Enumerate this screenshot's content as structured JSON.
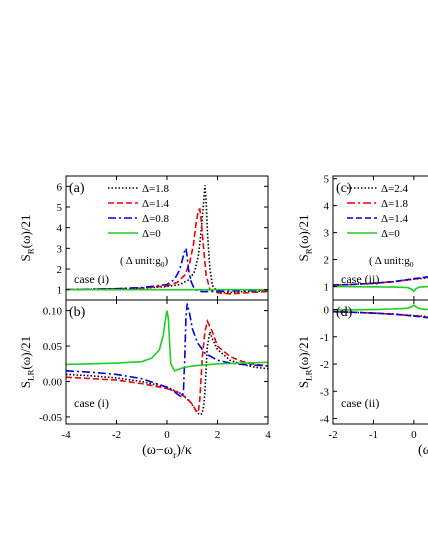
{
  "chart_data": [
    {
      "type": "line",
      "panel_label": "(a)",
      "case_label": "case (i)",
      "ylabel_main": "S",
      "ylabel_sub": "R",
      "ylabel_tail": "(ω)/21",
      "xlim": [
        -4,
        4
      ],
      "ylim": [
        0.5,
        6.5
      ],
      "xticks": [
        -4,
        -2,
        0,
        2,
        4
      ],
      "yticks": [
        1,
        2,
        3,
        4,
        5,
        6
      ],
      "legend_note": "( Δ unit:g",
      "legend_note_sub": "0",
      "legend_note_tail": ")",
      "series": [
        {
          "name": "Δ=1.8",
          "color": "#000000",
          "dash": "1.5,2",
          "x": [
            -4,
            -3,
            -2,
            -1,
            0,
            0.5,
            0.9,
            1.1,
            1.25,
            1.35,
            1.45,
            1.5,
            1.55,
            1.6,
            1.7,
            1.8,
            2,
            2.3,
            2.6,
            3,
            3.5,
            4
          ],
          "y": [
            1.0,
            1.02,
            1.04,
            1.07,
            1.15,
            1.25,
            1.5,
            1.9,
            2.7,
            3.8,
            5.2,
            6.05,
            5.3,
            3.8,
            2.0,
            1.2,
            0.9,
            0.85,
            0.87,
            0.9,
            0.92,
            0.94
          ]
        },
        {
          "name": "Δ=1.4",
          "color": "#e8000b",
          "dash": "6,3",
          "x": [
            -4,
            -3,
            -2,
            -1,
            0,
            0.4,
            0.7,
            0.9,
            1.05,
            1.15,
            1.25,
            1.3,
            1.35,
            1.45,
            1.55,
            1.7,
            2,
            2.5,
            3,
            3.5,
            4
          ],
          "y": [
            1.0,
            1.02,
            1.04,
            1.08,
            1.18,
            1.35,
            1.7,
            2.3,
            3.2,
            4.2,
            4.85,
            4.9,
            4.4,
            3.0,
            1.7,
            1.0,
            0.85,
            0.8,
            0.84,
            0.88,
            0.91
          ]
        },
        {
          "name": "Δ=0.8",
          "color": "#0000dd",
          "dash": "8,3,2,3",
          "x": [
            -4,
            -3,
            -2,
            -1,
            0,
            0.3,
            0.5,
            0.6,
            0.7,
            0.75,
            0.8,
            0.85,
            0.95,
            1.1,
            1.4,
            2,
            3,
            4
          ],
          "y": [
            1.0,
            1.02,
            1.05,
            1.1,
            1.25,
            1.5,
            1.95,
            2.4,
            2.9,
            3.0,
            2.6,
            2.0,
            1.4,
            1.0,
            0.9,
            0.92,
            0.95,
            0.97
          ]
        },
        {
          "name": "Δ=0",
          "color": "#22cc22",
          "dash": "",
          "x": [
            -4,
            -2,
            0,
            2,
            4
          ],
          "y": [
            1.0,
            1.0,
            1.0,
            1.0,
            1.0
          ]
        }
      ]
    },
    {
      "type": "line",
      "panel_label": "(b)",
      "case_label": "case (i)",
      "ylabel_main": "S",
      "ylabel_sub": "LR",
      "ylabel_tail": "(ω)/21",
      "xlabel": "(ω−ω",
      "xlabel_sub": "r",
      "xlabel_tail": ")/κ",
      "xlim": [
        -4,
        4
      ],
      "ylim": [
        -0.06,
        0.115
      ],
      "xticks": [
        -4,
        -2,
        0,
        2,
        4
      ],
      "yticks": [
        -0.05,
        0.0,
        0.05,
        0.1
      ],
      "ytick_labels": [
        "-0.05",
        "0.00",
        "0.05",
        "0.10"
      ],
      "series": [
        {
          "name": "Δ=1.8",
          "color": "#000000",
          "dash": "1.5,2",
          "x": [
            -4,
            -3,
            -2,
            -1,
            0,
            0.5,
            0.9,
            1.1,
            1.2,
            1.3,
            1.4,
            1.45,
            1.5,
            1.55,
            1.6,
            1.7,
            1.8,
            2,
            2.5,
            3,
            3.5,
            4
          ],
          "y": [
            0.01,
            0.008,
            0.005,
            0.0,
            -0.008,
            -0.016,
            -0.028,
            -0.038,
            -0.044,
            -0.047,
            -0.045,
            -0.035,
            -0.015,
            0.02,
            0.05,
            0.07,
            0.06,
            0.045,
            0.03,
            0.024,
            0.02,
            0.018
          ]
        },
        {
          "name": "Δ=1.4",
          "color": "#e8000b",
          "dash": "6,3",
          "x": [
            -4,
            -3,
            -2,
            -1,
            0,
            0.5,
            0.8,
            1.0,
            1.1,
            1.15,
            1.2,
            1.25,
            1.3,
            1.35,
            1.4,
            1.5,
            1.6,
            1.8,
            2,
            2.5,
            3,
            3.5,
            4
          ],
          "y": [
            0.006,
            0.004,
            0.002,
            -0.003,
            -0.01,
            -0.016,
            -0.024,
            -0.032,
            -0.038,
            -0.042,
            -0.044,
            -0.04,
            -0.025,
            0.005,
            0.035,
            0.07,
            0.085,
            0.07,
            0.05,
            0.035,
            0.028,
            0.024,
            0.022
          ]
        },
        {
          "name": "Δ=0.8",
          "color": "#0000dd",
          "dash": "8,3,2,3",
          "x": [
            -4,
            -3,
            -2,
            -1,
            -0.5,
            0,
            0.3,
            0.5,
            0.6,
            0.65,
            0.7,
            0.75,
            0.8,
            0.9,
            1.0,
            1.2,
            1.5,
            2,
            2.5,
            3,
            3.5,
            4
          ],
          "y": [
            0.015,
            0.013,
            0.01,
            0.004,
            -0.002,
            -0.008,
            -0.015,
            -0.02,
            -0.022,
            -0.015,
            0.03,
            0.09,
            0.11,
            0.095,
            0.075,
            0.055,
            0.04,
            0.03,
            0.026,
            0.024,
            0.023,
            0.022
          ]
        },
        {
          "name": "Δ=0",
          "color": "#22cc22",
          "dash": "",
          "x": [
            -4,
            -3,
            -2,
            -1,
            -0.6,
            -0.3,
            -0.15,
            -0.05,
            0,
            0.05,
            0.15,
            0.3,
            0.6,
            1,
            2,
            3,
            4
          ],
          "y": [
            0.024,
            0.025,
            0.026,
            0.028,
            0.033,
            0.045,
            0.065,
            0.09,
            0.1,
            0.09,
            0.025,
            0.015,
            0.019,
            0.022,
            0.025,
            0.026,
            0.027
          ]
        }
      ]
    },
    {
      "type": "line",
      "panel_label": "(c)",
      "case_label": "case (ii)",
      "ylabel_main": "S",
      "ylabel_sub": "R",
      "ylabel_tail": "(ω)/21",
      "xlim": [
        -2,
        0.35
      ],
      "ylim": [
        0.5,
        5.1
      ],
      "xticks": [
        -2,
        -1,
        0
      ],
      "yticks": [
        1,
        2,
        3,
        4,
        5
      ],
      "legend_note": "( Δ unit:g",
      "legend_note_sub": "0",
      "series": [
        {
          "name": "Δ=2.4",
          "color": "#000000",
          "dash": "1.5,2",
          "x": [
            -2,
            -1.5,
            -1,
            -0.5,
            0,
            0.35
          ],
          "y": [
            1.05,
            1.08,
            1.12,
            1.18,
            1.27,
            1.32
          ]
        },
        {
          "name": "Δ=1.8",
          "color": "#e8000b",
          "dash": "8,3,2,3",
          "x": [
            -2,
            -1.5,
            -1,
            -0.5,
            0,
            0.35
          ],
          "y": [
            1.05,
            1.08,
            1.12,
            1.18,
            1.28,
            1.34
          ]
        },
        {
          "name": "Δ=1.4",
          "color": "#0000dd",
          "dash": "6,3",
          "x": [
            -2,
            -1.5,
            -1,
            -0.5,
            0,
            0.35
          ],
          "y": [
            1.05,
            1.08,
            1.12,
            1.18,
            1.29,
            1.36
          ]
        },
        {
          "name": "Δ=0",
          "color": "#22cc22",
          "dash": "",
          "x": [
            -2,
            -1,
            -0.5,
            -0.15,
            -0.05,
            0,
            0.05,
            0.15,
            0.35
          ],
          "y": [
            1.0,
            0.99,
            0.98,
            0.96,
            0.9,
            0.82,
            0.92,
            0.98,
            1.0
          ]
        }
      ]
    },
    {
      "type": "line",
      "panel_label": "(d)",
      "case_label": "case (ii)",
      "ylabel_main": "S",
      "ylabel_sub": "LR",
      "ylabel_tail": "(ω)/21",
      "xlabel": "(ω−ω",
      "xlim": [
        -2,
        0.35
      ],
      "ylim": [
        -4.2,
        0.35
      ],
      "xticks": [
        -2,
        -1,
        0
      ],
      "yticks": [
        0,
        -1,
        -2,
        -3,
        -4
      ],
      "series": [
        {
          "name": "Δ=2.4",
          "color": "#000000",
          "dash": "1.5,2",
          "x": [
            -2,
            -1.5,
            -1,
            -0.5,
            0,
            0.35
          ],
          "y": [
            -0.08,
            -0.1,
            -0.13,
            -0.17,
            -0.22,
            -0.26
          ]
        },
        {
          "name": "Δ=1.8",
          "color": "#e8000b",
          "dash": "8,3,2,3",
          "x": [
            -2,
            -1.5,
            -1,
            -0.5,
            0,
            0.35
          ],
          "y": [
            -0.08,
            -0.1,
            -0.13,
            -0.17,
            -0.23,
            -0.28
          ]
        },
        {
          "name": "Δ=1.4",
          "color": "#0000dd",
          "dash": "6,3",
          "x": [
            -2,
            -1.5,
            -1,
            -0.5,
            0,
            0.35
          ],
          "y": [
            -0.08,
            -0.1,
            -0.13,
            -0.17,
            -0.24,
            -0.3
          ]
        },
        {
          "name": "Δ=0",
          "color": "#22cc22",
          "dash": "",
          "x": [
            -2,
            -1,
            -0.5,
            -0.15,
            -0.05,
            0,
            0.05,
            0.15,
            0.35
          ],
          "y": [
            -0.02,
            0.0,
            0.02,
            0.05,
            0.1,
            0.16,
            0.1,
            0.03,
            0.0
          ]
        }
      ]
    }
  ]
}
